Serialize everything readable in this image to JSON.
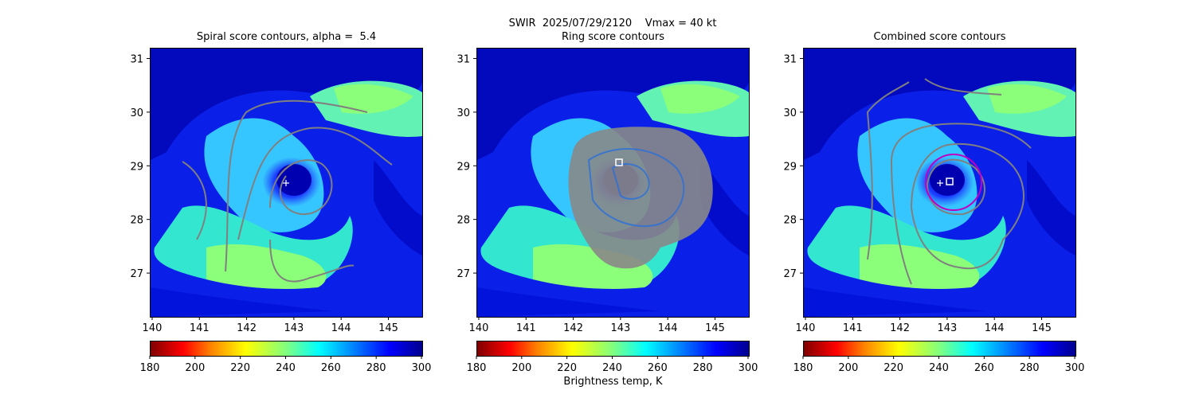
{
  "figure": {
    "suptitle_line1": "SWIR  2025/07/29/2120    Vmax = 40 kt",
    "colorbar_label": "Brightness temp, K"
  },
  "panels": [
    {
      "title": "Spiral score contours, alpha =  5.4"
    },
    {
      "title": "Ring score contours"
    },
    {
      "title": "Combined score contours"
    }
  ],
  "chart_data": {
    "type": "heatmap",
    "xlim": [
      139.95,
      145.7
    ],
    "ylim": [
      26.2,
      31.2
    ],
    "x_ticks": [
      140,
      141,
      142,
      143,
      144,
      145
    ],
    "y_ticks": [
      27,
      28,
      29,
      30,
      31
    ],
    "colorbar": {
      "min": 180,
      "max": 300,
      "ticks": [
        180,
        200,
        220,
        240,
        260,
        280,
        300
      ],
      "colormap": "jet_r"
    },
    "markers": {
      "spiral_center": {
        "lon": 142.8,
        "lat": 28.7,
        "symbol": "+"
      },
      "ring_center": {
        "lon": 142.9,
        "lat": 29.05,
        "symbol": "square"
      },
      "combined_plus": {
        "lon": 142.8,
        "lat": 28.7,
        "symbol": "+"
      },
      "combined_square": {
        "lon": 143.0,
        "lat": 28.72,
        "symbol": "square"
      },
      "combined_circle": {
        "center_lon": 143.0,
        "center_lat": 28.72,
        "radius_deg": 0.5
      }
    },
    "colors": {
      "contour": "#808080",
      "marker": "#ffffff",
      "circle": "#c000c0"
    }
  }
}
